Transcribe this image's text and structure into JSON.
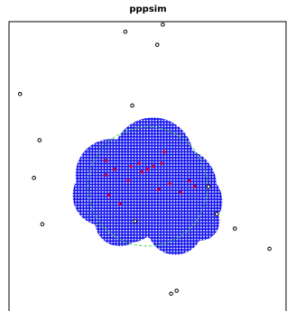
{
  "chart_data": {
    "type": "scatter",
    "title": "pppsim",
    "xlim": [
      0,
      1
    ],
    "ylim": [
      0,
      1
    ],
    "grid": false,
    "legend": "none",
    "colors": {
      "frame": "#000000",
      "points": "#000000",
      "cluster_points": "#cc0033",
      "circle": "#33cc33",
      "cluster_fill": "#1111ee",
      "cluster_grid": "#ffffff"
    },
    "discs": [
      {
        "x": 0.52,
        "y": 0.53,
        "r": 0.145
      },
      {
        "x": 0.37,
        "y": 0.47,
        "r": 0.13
      },
      {
        "x": 0.61,
        "y": 0.43,
        "r": 0.14
      },
      {
        "x": 0.34,
        "y": 0.4,
        "r": 0.11
      },
      {
        "x": 0.57,
        "y": 0.36,
        "r": 0.13
      },
      {
        "x": 0.43,
        "y": 0.35,
        "r": 0.12
      },
      {
        "x": 0.67,
        "y": 0.38,
        "r": 0.1
      },
      {
        "x": 0.4,
        "y": 0.31,
        "r": 0.09
      },
      {
        "x": 0.6,
        "y": 0.29,
        "r": 0.1
      },
      {
        "x": 0.69,
        "y": 0.31,
        "r": 0.07
      }
    ],
    "circle": {
      "x": 0.5,
      "y": 0.43,
      "r": 0.215
    },
    "points": [
      {
        "x": 0.42,
        "y": 0.965
      },
      {
        "x": 0.555,
        "y": 0.99
      },
      {
        "x": 0.535,
        "y": 0.92
      },
      {
        "x": 0.04,
        "y": 0.75
      },
      {
        "x": 0.445,
        "y": 0.71
      },
      {
        "x": 0.11,
        "y": 0.59
      },
      {
        "x": 0.09,
        "y": 0.46
      },
      {
        "x": 0.72,
        "y": 0.43
      },
      {
        "x": 0.12,
        "y": 0.3
      },
      {
        "x": 0.455,
        "y": 0.31
      },
      {
        "x": 0.75,
        "y": 0.335
      },
      {
        "x": 0.815,
        "y": 0.285
      },
      {
        "x": 0.94,
        "y": 0.215
      },
      {
        "x": 0.605,
        "y": 0.07
      },
      {
        "x": 0.585,
        "y": 0.06
      }
    ],
    "cluster_points": [
      {
        "x": 0.56,
        "y": 0.55
      },
      {
        "x": 0.35,
        "y": 0.52
      },
      {
        "x": 0.38,
        "y": 0.49
      },
      {
        "x": 0.44,
        "y": 0.5
      },
      {
        "x": 0.47,
        "y": 0.51
      },
      {
        "x": 0.48,
        "y": 0.48
      },
      {
        "x": 0.5,
        "y": 0.49
      },
      {
        "x": 0.52,
        "y": 0.5
      },
      {
        "x": 0.55,
        "y": 0.51
      },
      {
        "x": 0.58,
        "y": 0.44
      },
      {
        "x": 0.62,
        "y": 0.41
      },
      {
        "x": 0.54,
        "y": 0.42
      },
      {
        "x": 0.43,
        "y": 0.45
      },
      {
        "x": 0.36,
        "y": 0.4
      },
      {
        "x": 0.4,
        "y": 0.37
      },
      {
        "x": 0.65,
        "y": 0.45
      },
      {
        "x": 0.67,
        "y": 0.43
      },
      {
        "x": 0.35,
        "y": 0.47
      }
    ]
  }
}
